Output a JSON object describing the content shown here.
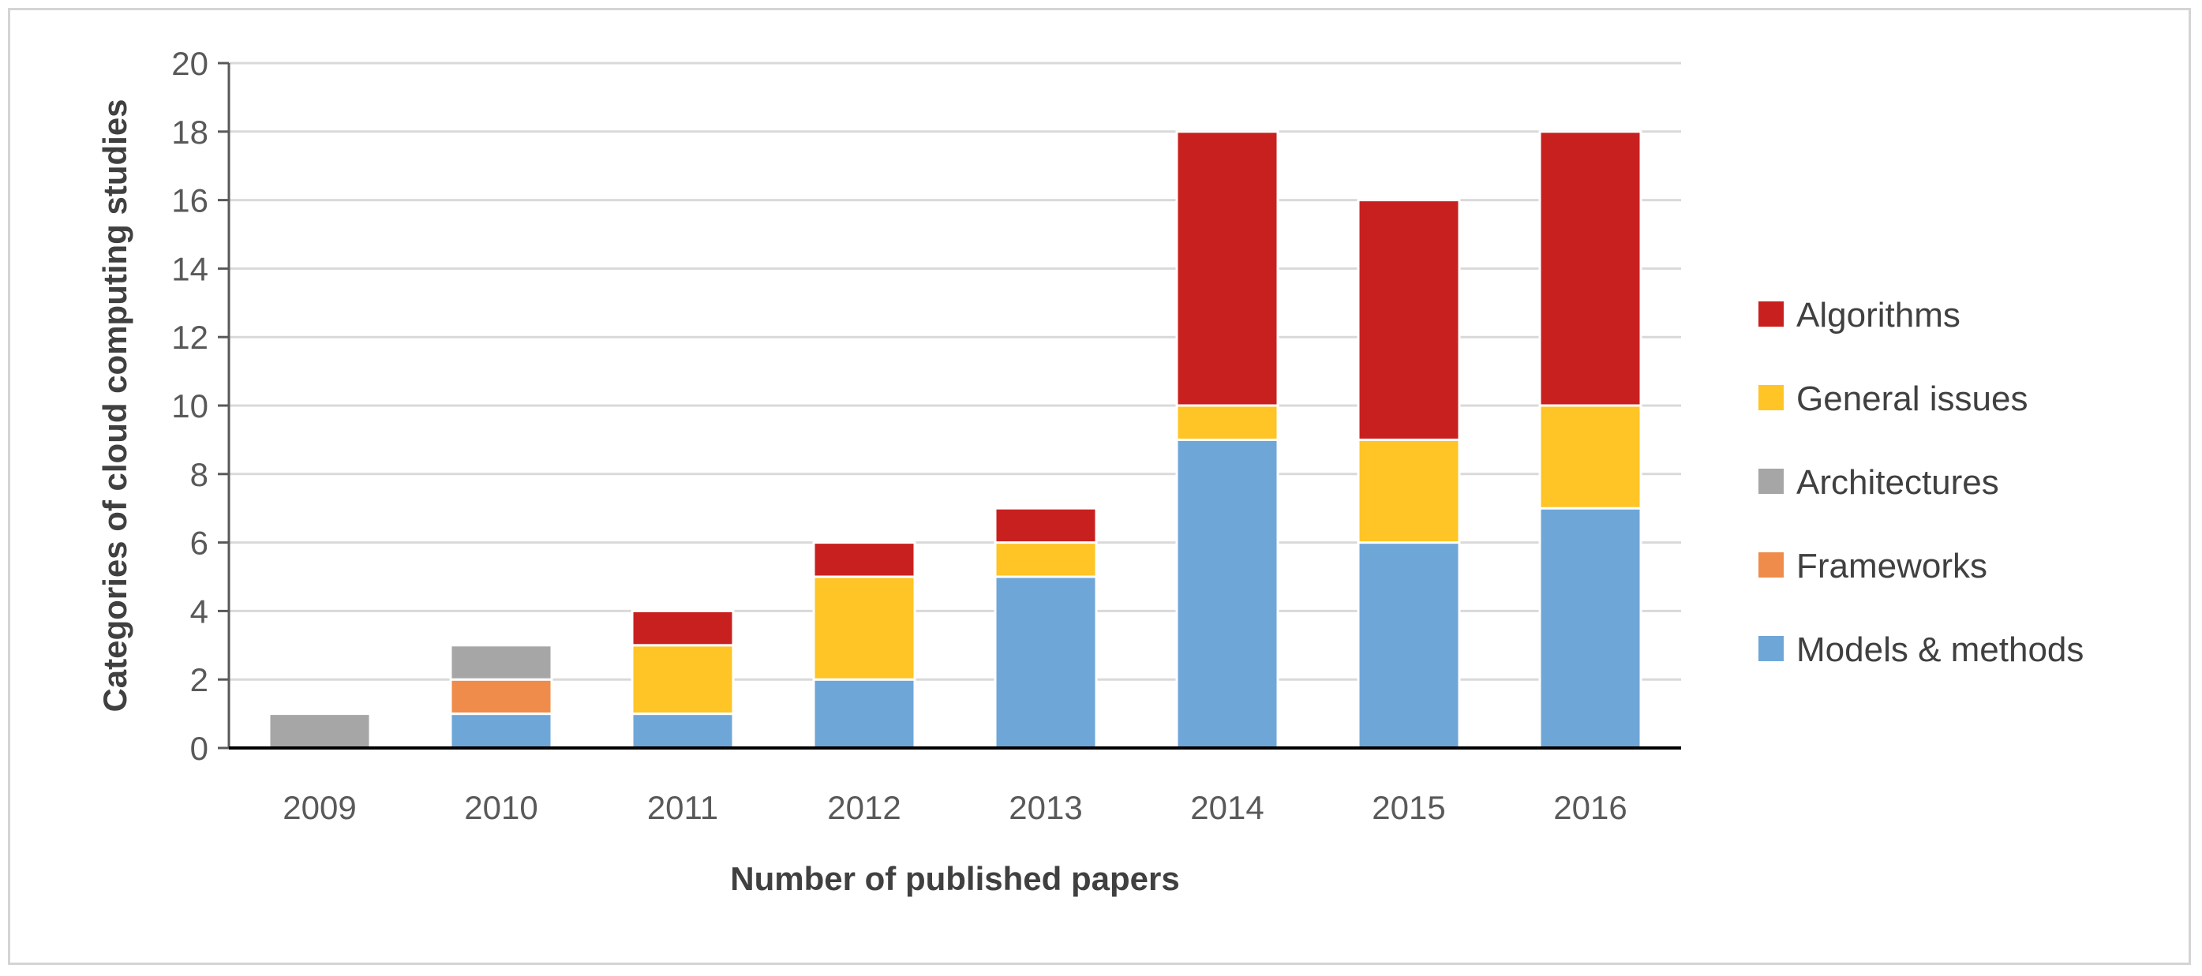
{
  "chart_data": {
    "type": "bar",
    "stacked": true,
    "categories": [
      "2009",
      "2010",
      "2011",
      "2012",
      "2013",
      "2014",
      "2015",
      "2016"
    ],
    "series": [
      {
        "name": "Models & methods",
        "color": "#6fa6d8",
        "values": [
          0,
          1,
          1,
          2,
          5,
          9,
          6,
          7
        ]
      },
      {
        "name": "Frameworks",
        "color": "#ef8c4b",
        "values": [
          0,
          1,
          0,
          0,
          0,
          0,
          0,
          0
        ]
      },
      {
        "name": "Architectures",
        "color": "#a6a6a6",
        "values": [
          1,
          1,
          0,
          0,
          0,
          0,
          0,
          0
        ]
      },
      {
        "name": "General issues",
        "color": "#ffc425",
        "values": [
          0,
          0,
          2,
          3,
          1,
          1,
          3,
          3
        ]
      },
      {
        "name": "Algorithms",
        "color": "#c8201f",
        "values": [
          0,
          0,
          1,
          1,
          1,
          8,
          7,
          8
        ]
      }
    ],
    "legend_order": [
      "Algorithms",
      "General issues",
      "Architectures",
      "Frameworks",
      "Models & methods"
    ],
    "xlabel": "Number of published papers",
    "ylabel": "Categories of cloud computing studies",
    "ylim": [
      0,
      20
    ],
    "yticks": [
      0,
      2,
      4,
      6,
      8,
      10,
      12,
      14,
      16,
      18,
      20
    ],
    "grid": true,
    "legend_position": "right"
  }
}
